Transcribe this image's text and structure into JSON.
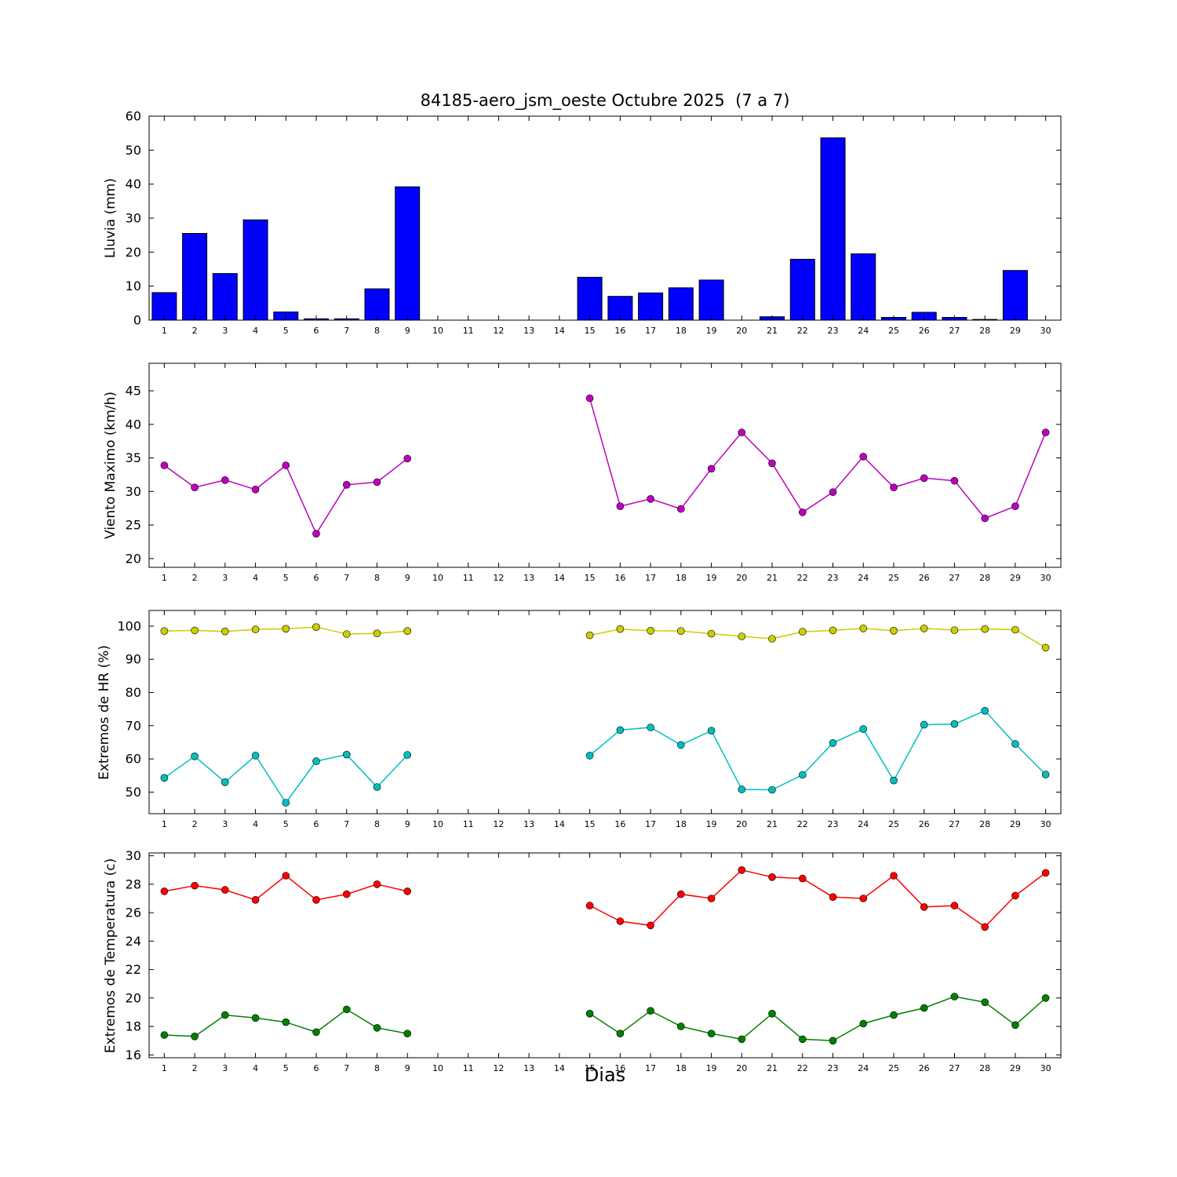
{
  "figure": {
    "title": "84185-aero_jsm_oeste Octubre 2025  (7 a 7)",
    "xlabel": "Dias",
    "background": "#ffffff",
    "xlim": [
      0.5,
      30.5
    ],
    "xticks": [
      1,
      2,
      3,
      4,
      5,
      6,
      7,
      8,
      9,
      10,
      11,
      12,
      13,
      14,
      15,
      16,
      17,
      18,
      19,
      20,
      21,
      22,
      23,
      24,
      25,
      26,
      27,
      28,
      29,
      30
    ]
  },
  "chart_data": [
    {
      "type": "bar",
      "ylabel": "Lluvia (mm)",
      "bar_color": "#0000ff",
      "edge_color": "#000000",
      "ylim": [
        0,
        60
      ],
      "yticks": [
        0,
        10,
        20,
        30,
        40,
        50,
        60
      ],
      "categories": [
        1,
        2,
        3,
        4,
        5,
        6,
        7,
        8,
        9,
        10,
        11,
        12,
        13,
        14,
        15,
        16,
        17,
        18,
        19,
        20,
        21,
        22,
        23,
        24,
        25,
        26,
        27,
        28,
        29,
        30
      ],
      "values": [
        8.1,
        25.5,
        13.7,
        29.5,
        2.4,
        0.4,
        0.4,
        9.2,
        39.2,
        0,
        0,
        0,
        0,
        0,
        12.6,
        7.0,
        8.0,
        9.5,
        11.8,
        0,
        1.0,
        17.9,
        53.6,
        19.5,
        0.8,
        2.3,
        0.8,
        0.2,
        14.6,
        0
      ]
    },
    {
      "type": "line",
      "ylabel": "Viento Maximo (km/h)",
      "ylim": [
        18.7,
        49.1
      ],
      "yticks": [
        20,
        25,
        30,
        35,
        40,
        45
      ],
      "x": [
        1,
        2,
        3,
        4,
        5,
        6,
        7,
        8,
        9,
        10,
        11,
        12,
        13,
        14,
        15,
        16,
        17,
        18,
        19,
        20,
        21,
        22,
        23,
        24,
        25,
        26,
        27,
        28,
        29,
        30
      ],
      "series": [
        {
          "name": "viento_maximo",
          "color": "#bf00bf",
          "values": [
            33.9,
            30.6,
            31.7,
            30.3,
            33.9,
            23.7,
            31.0,
            31.4,
            34.9,
            null,
            null,
            null,
            null,
            null,
            43.9,
            27.8,
            28.9,
            27.4,
            33.4,
            38.8,
            34.2,
            26.9,
            29.9,
            35.2,
            30.6,
            32.0,
            31.6,
            26.0,
            27.8,
            38.8
          ]
        }
      ]
    },
    {
      "type": "line",
      "ylabel": "Extremos de HR (%)",
      "ylim": [
        43.5,
        104.7
      ],
      "yticks": [
        50,
        60,
        70,
        80,
        90,
        100
      ],
      "x": [
        1,
        2,
        3,
        4,
        5,
        6,
        7,
        8,
        9,
        10,
        11,
        12,
        13,
        14,
        15,
        16,
        17,
        18,
        19,
        20,
        21,
        22,
        23,
        24,
        25,
        26,
        27,
        28,
        29,
        30
      ],
      "series": [
        {
          "name": "hr_maxima",
          "color": "#cdcd00",
          "values": [
            98.5,
            98.7,
            98.4,
            99.0,
            99.2,
            99.7,
            97.6,
            97.8,
            98.5,
            null,
            null,
            null,
            null,
            null,
            97.2,
            99.1,
            98.6,
            98.5,
            97.7,
            96.9,
            96.2,
            98.3,
            98.7,
            99.3,
            98.6,
            99.3,
            98.8,
            99.1,
            98.9,
            93.5
          ]
        },
        {
          "name": "hr_minima",
          "color": "#00bfbf",
          "values": [
            54.3,
            60.8,
            53.0,
            61.0,
            46.8,
            59.3,
            61.3,
            51.5,
            61.2,
            null,
            null,
            null,
            null,
            null,
            61.0,
            68.7,
            69.5,
            64.2,
            68.5,
            50.8,
            50.7,
            55.2,
            64.8,
            69.0,
            53.5,
            70.3,
            70.5,
            74.5,
            64.5,
            55.3
          ]
        }
      ]
    },
    {
      "type": "line",
      "ylabel": "Extremos de Temperatura (c)",
      "ylim": [
        15.8,
        30.2
      ],
      "yticks": [
        16,
        18,
        20,
        22,
        24,
        26,
        28,
        30
      ],
      "x": [
        1,
        2,
        3,
        4,
        5,
        6,
        7,
        8,
        9,
        10,
        11,
        12,
        13,
        14,
        15,
        16,
        17,
        18,
        19,
        20,
        21,
        22,
        23,
        24,
        25,
        26,
        27,
        28,
        29,
        30
      ],
      "series": [
        {
          "name": "temperatura_maxima",
          "color": "#ff0000",
          "values": [
            27.5,
            27.9,
            27.6,
            26.9,
            28.6,
            26.9,
            27.3,
            28.0,
            27.5,
            null,
            null,
            null,
            null,
            null,
            26.5,
            25.4,
            25.1,
            27.3,
            27.0,
            29.0,
            28.5,
            28.4,
            27.1,
            27.0,
            28.6,
            26.4,
            26.5,
            25.0,
            27.2,
            28.8
          ]
        },
        {
          "name": "temperatura_minima",
          "color": "#008000",
          "values": [
            17.4,
            17.3,
            18.8,
            18.6,
            18.3,
            17.6,
            19.2,
            17.9,
            17.5,
            null,
            null,
            null,
            null,
            null,
            18.9,
            17.5,
            19.1,
            18.0,
            17.5,
            17.1,
            18.9,
            17.1,
            17.0,
            18.2,
            18.8,
            19.3,
            20.1,
            19.7,
            18.1,
            20.0
          ]
        }
      ]
    }
  ]
}
